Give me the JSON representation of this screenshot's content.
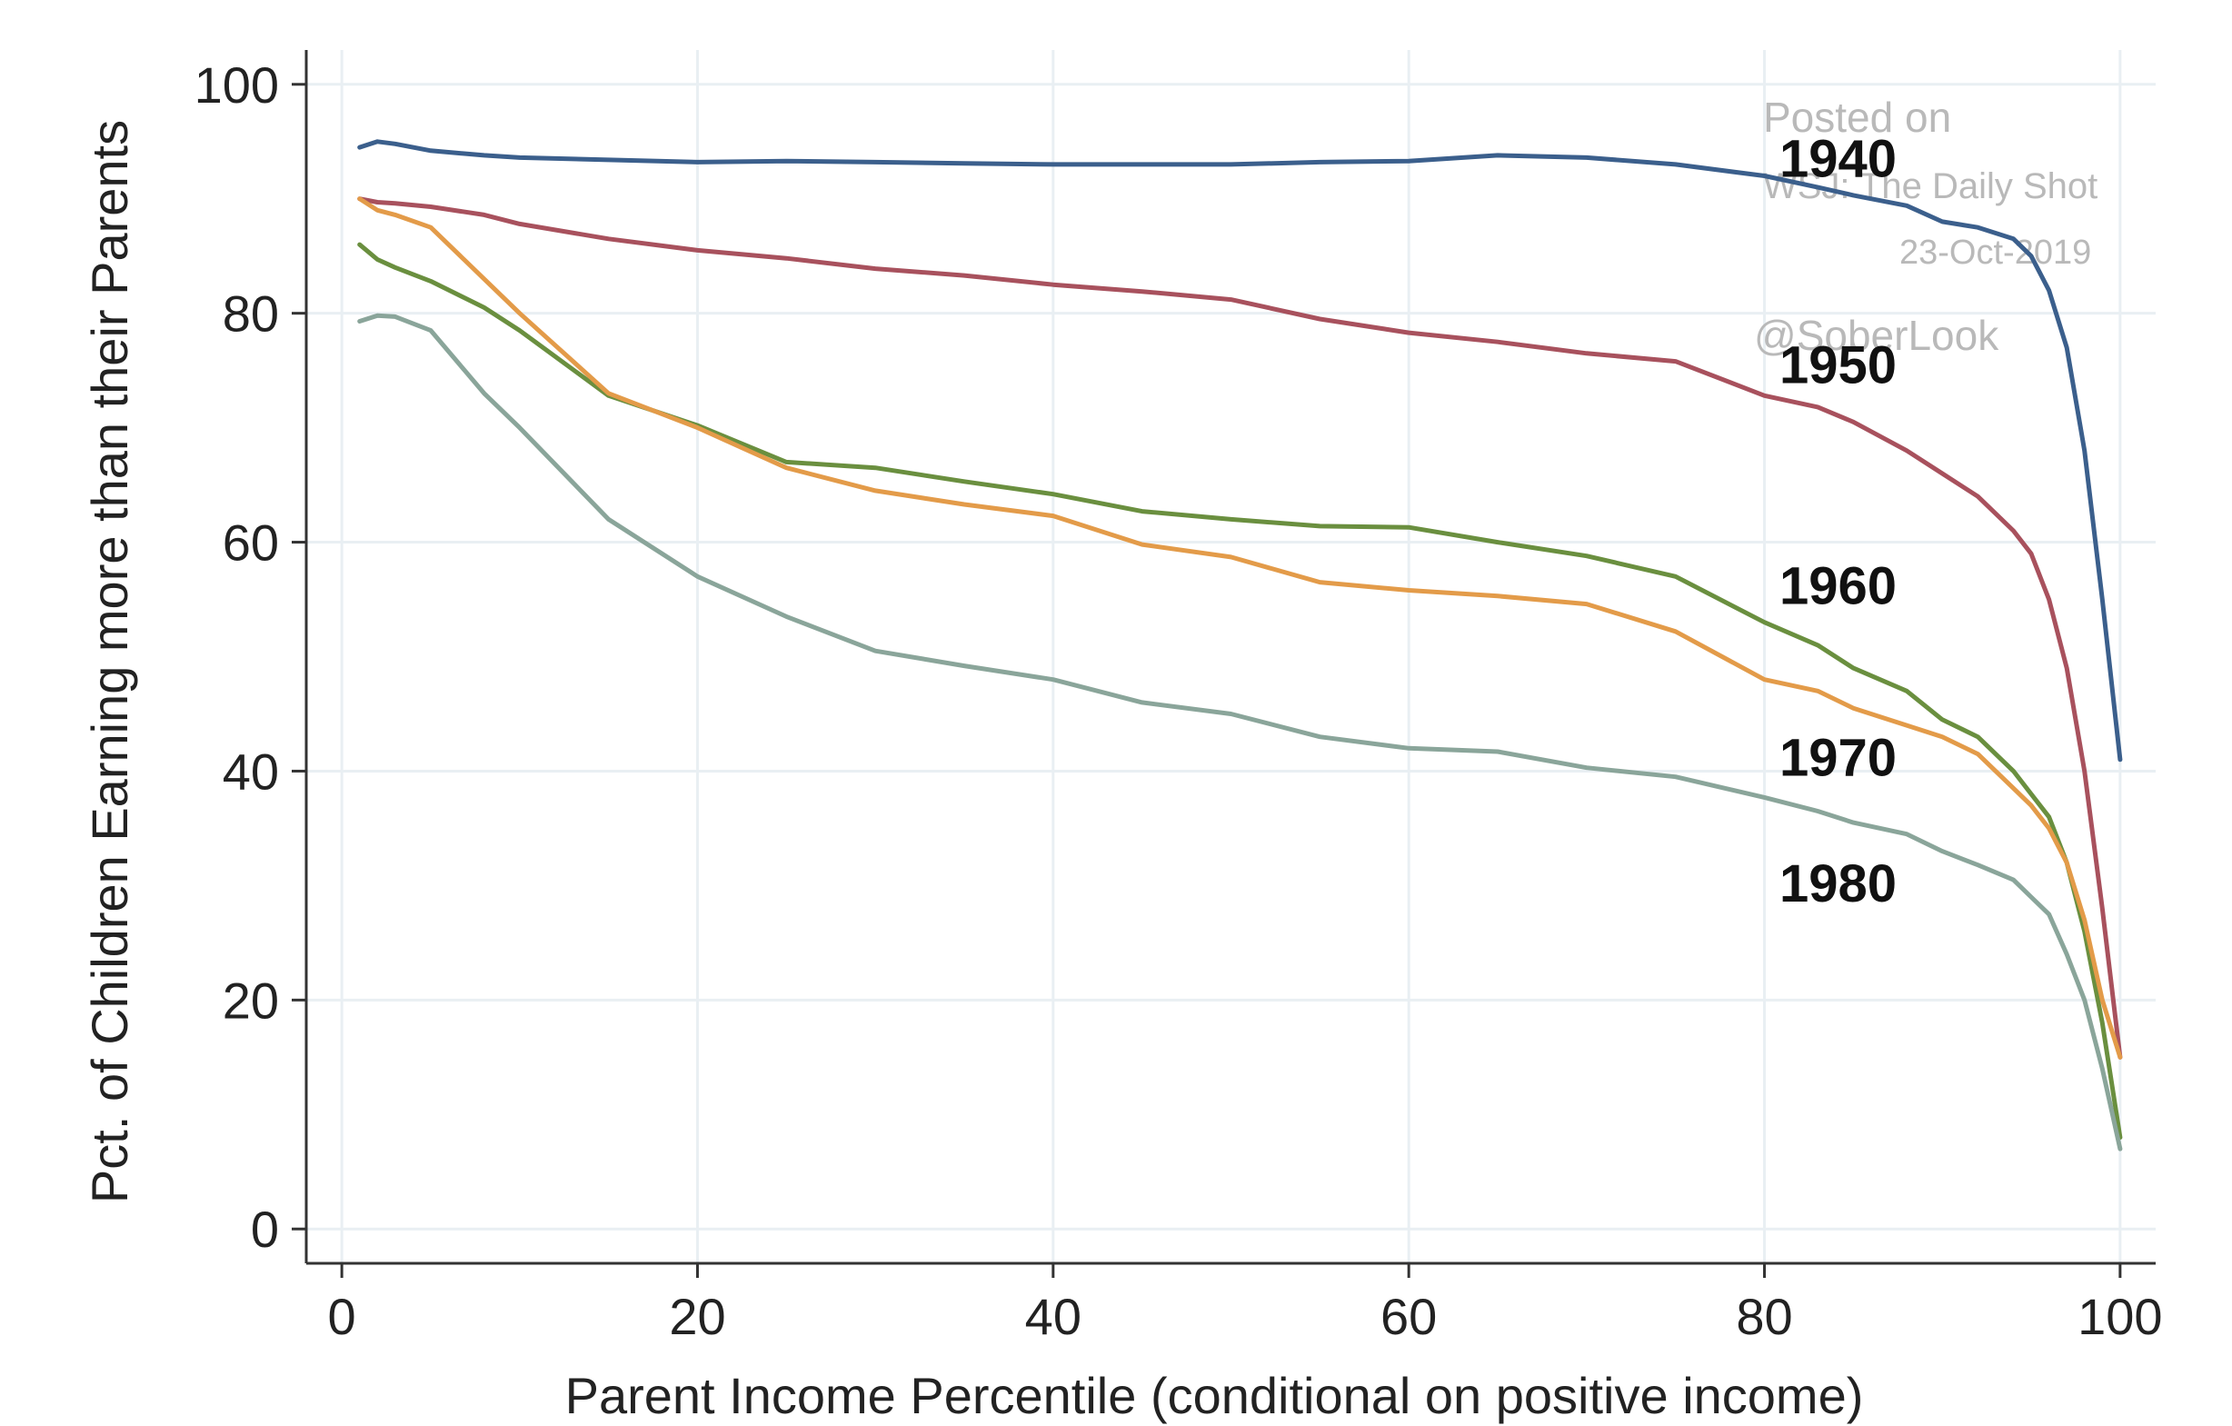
{
  "chart_data": {
    "type": "line",
    "title": "",
    "xlabel": "Parent Income Percentile (conditional on positive income)",
    "ylabel": "Pct. of Children Earning more than their Parents",
    "xlim": [
      -2,
      102
    ],
    "ylim": [
      -3,
      103
    ],
    "xticks": [
      0,
      20,
      40,
      60,
      80,
      100
    ],
    "yticks": [
      0,
      20,
      40,
      60,
      80,
      100
    ],
    "grid": true,
    "x": [
      1,
      2,
      3,
      5,
      8,
      10,
      15,
      20,
      25,
      30,
      35,
      40,
      45,
      50,
      55,
      60,
      65,
      70,
      75,
      80,
      83,
      85,
      88,
      90,
      92,
      94,
      95,
      96,
      97,
      98,
      99,
      100
    ],
    "series": [
      {
        "name": "1940",
        "color": "#3b5f8c",
        "values": [
          94.5,
          95.0,
          94.8,
          94.2,
          93.8,
          93.6,
          93.4,
          93.2,
          93.3,
          93.2,
          93.1,
          93.0,
          93.0,
          93.0,
          93.2,
          93.3,
          93.8,
          93.6,
          93.0,
          92.0,
          91.0,
          90.3,
          89.4,
          88.0,
          87.5,
          86.5,
          85.0,
          82.0,
          77.0,
          68.0,
          55.0,
          41.0
        ]
      },
      {
        "name": "1950",
        "color": "#a8515d",
        "values": [
          90.0,
          89.7,
          89.6,
          89.3,
          88.6,
          87.8,
          86.5,
          85.5,
          84.8,
          83.9,
          83.3,
          82.5,
          81.9,
          81.2,
          79.5,
          78.3,
          77.5,
          76.5,
          75.8,
          72.8,
          71.8,
          70.5,
          68.0,
          66.0,
          64.0,
          61.0,
          59.0,
          55.0,
          49.0,
          40.0,
          28.0,
          15.0
        ]
      },
      {
        "name": "1960",
        "color": "#6a8f3f",
        "values": [
          86.0,
          84.7,
          84.0,
          82.8,
          80.5,
          78.5,
          72.8,
          70.2,
          67.0,
          66.5,
          65.3,
          64.2,
          62.7,
          62.0,
          61.4,
          61.3,
          60.0,
          58.8,
          57.0,
          53.0,
          51.0,
          49.0,
          47.0,
          44.5,
          43.0,
          40.0,
          38.0,
          36.0,
          32.0,
          26.0,
          18.0,
          8.0
        ]
      },
      {
        "name": "1970",
        "color": "#e39b49",
        "values": [
          90.0,
          89.0,
          88.6,
          87.5,
          83.0,
          80.0,
          73.0,
          70.0,
          66.5,
          64.5,
          63.3,
          62.3,
          59.8,
          58.7,
          56.5,
          55.8,
          55.3,
          54.6,
          52.2,
          48.0,
          47.0,
          45.5,
          44.0,
          43.0,
          41.5,
          38.5,
          37.0,
          35.0,
          32.0,
          27.0,
          20.0,
          15.0
        ]
      },
      {
        "name": "1980",
        "color": "#8aa59a",
        "values": [
          79.3,
          79.8,
          79.7,
          78.5,
          73.0,
          70.0,
          62.0,
          57.0,
          53.5,
          50.5,
          49.2,
          48.0,
          46.0,
          45.0,
          43.0,
          42.0,
          41.7,
          40.3,
          39.5,
          37.7,
          36.5,
          35.5,
          34.5,
          33.0,
          31.8,
          30.5,
          29.0,
          27.5,
          24.0,
          20.0,
          14.0,
          7.0
        ]
      }
    ],
    "series_labels": [
      "1940",
      "1950",
      "1960",
      "1970",
      "1980"
    ],
    "watermark": {
      "line1": "Posted on",
      "line2": "WSJ: The Daily Shot",
      "line3": "23-Oct-2019",
      "line4": "@SoberLook"
    }
  }
}
